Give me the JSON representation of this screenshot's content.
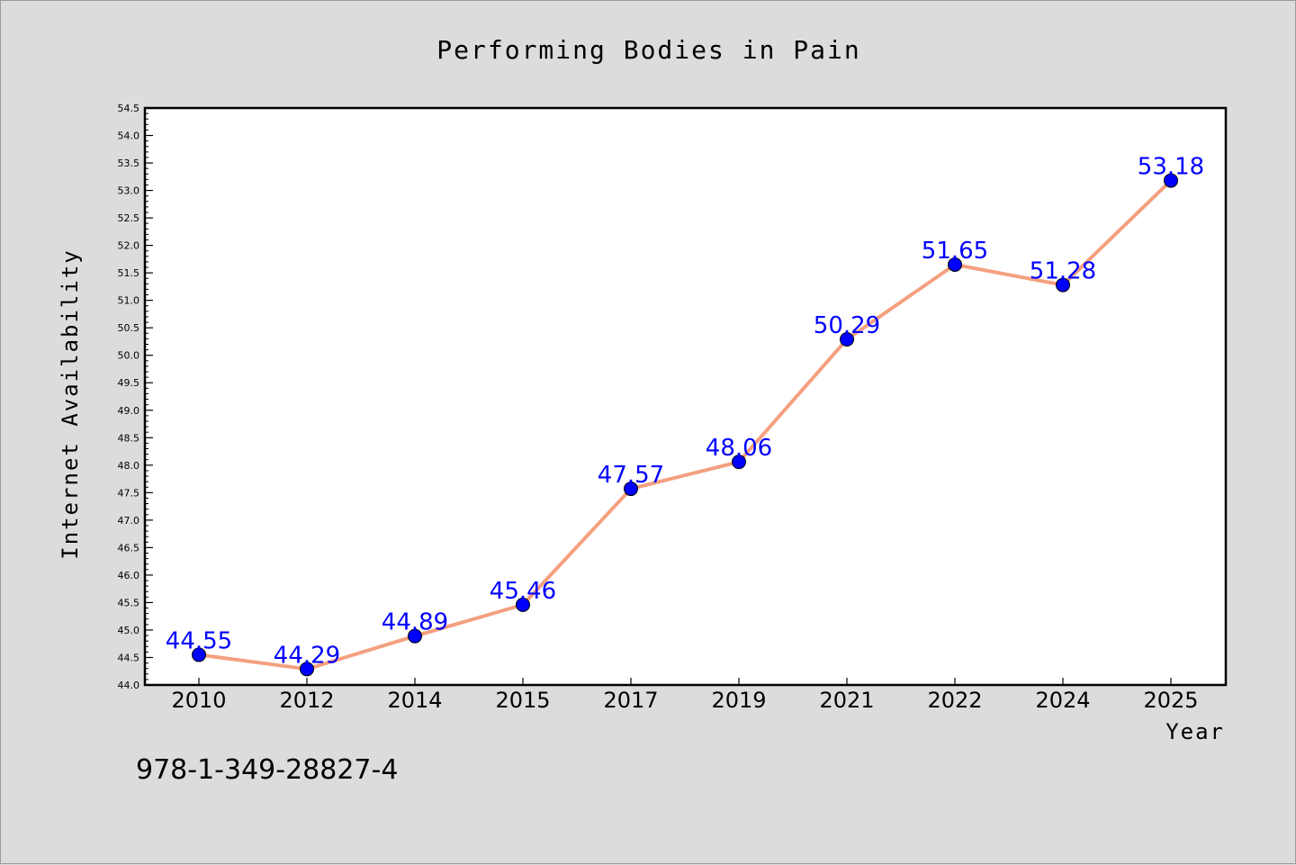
{
  "chart_data": {
    "type": "line",
    "title": "Performing Bodies in Pain",
    "xlabel": "Year",
    "ylabel": "Internet Availability",
    "categories": [
      "2010",
      "2012",
      "2014",
      "2015",
      "2017",
      "2019",
      "2021",
      "2022",
      "2024",
      "2025"
    ],
    "series": [
      {
        "values": [
          44.55,
          44.29,
          44.89,
          45.46,
          47.57,
          48.06,
          50.29,
          51.65,
          51.28,
          53.18
        ],
        "labels": [
          "44.55",
          "44.29",
          "44.89",
          "45.46",
          "47.57",
          "48.06",
          "50.29",
          "51.65",
          "51.28",
          "53.18"
        ]
      }
    ],
    "ylim": [
      44.0,
      54.5
    ],
    "yticks": [
      "44.0",
      "44.5",
      "45.0",
      "45.5",
      "46.0",
      "46.5",
      "47.0",
      "47.5",
      "48.0",
      "48.5",
      "49.0",
      "49.5",
      "50.0",
      "50.5",
      "51.0",
      "51.5",
      "52.0",
      "52.5",
      "53.0",
      "53.5",
      "54.0",
      "54.5"
    ],
    "grid": false,
    "line_color": "#f4a07f",
    "marker_color": "#0000ff",
    "label_color": "#0000ff"
  },
  "footer": {
    "isbn": "978-1-349-28827-4"
  }
}
